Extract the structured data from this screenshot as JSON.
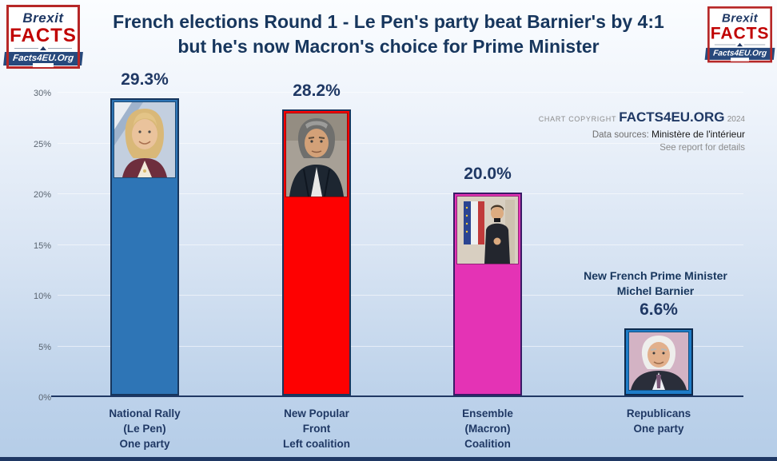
{
  "header": {
    "title_line1": "French elections Round 1 - Le Pen's party beat Barnier's by 4:1",
    "title_line2": "but he's now Macron's choice for Prime Minister"
  },
  "logo": {
    "top": "Brexit",
    "main": "FACTS",
    "ribbon": "Facts4EU.Org"
  },
  "copyright": {
    "label": "CHART COPYRIGHT",
    "brand": "FACTS4EU.ORG",
    "year": "2024",
    "sources_label": "Data sources:",
    "sources_value": "Ministère de l'intérieur",
    "note": "See report for details"
  },
  "annotation": {
    "line1": "New French Prime Minister",
    "line2": "Michel Barnier"
  },
  "chart_data": {
    "type": "bar",
    "title": "French elections Round 1 - Le Pen's party beat Barnier's by 4:1 but he's now Macron's choice for Prime Minister",
    "categories": [
      {
        "line1": "National Rally",
        "line2": "(Le Pen)",
        "line3": "One party"
      },
      {
        "line1": "New Popular",
        "line2": "Front",
        "line3": "Left coalition"
      },
      {
        "line1": "Ensemble",
        "line2": "(Macron)",
        "line3": "Coalition"
      },
      {
        "line1": "Republicans",
        "line2": "One party",
        "line3": ""
      }
    ],
    "values": [
      29.3,
      28.2,
      20.0,
      6.6
    ],
    "value_labels": [
      "29.3%",
      "28.2%",
      "20.0%",
      "6.6%"
    ],
    "portraits": [
      "Marine Le Pen",
      "Olivier Faure",
      "Emmanuel Macron",
      "Michel Barnier"
    ],
    "bar_colors": [
      "#2E75B6",
      "#FE0101",
      "#E433B5",
      "#1E7DC8"
    ],
    "bar_border_colors": [
      "#17365D",
      "#17365D",
      "#3A1A66",
      "#0D2A4D"
    ],
    "xlabel": "",
    "ylabel": "",
    "ylim": [
      0,
      30
    ],
    "yticks": [
      "0%",
      "5%",
      "10%",
      "15%",
      "20%",
      "25%",
      "30%"
    ],
    "grid": true,
    "legend_position": "none"
  }
}
